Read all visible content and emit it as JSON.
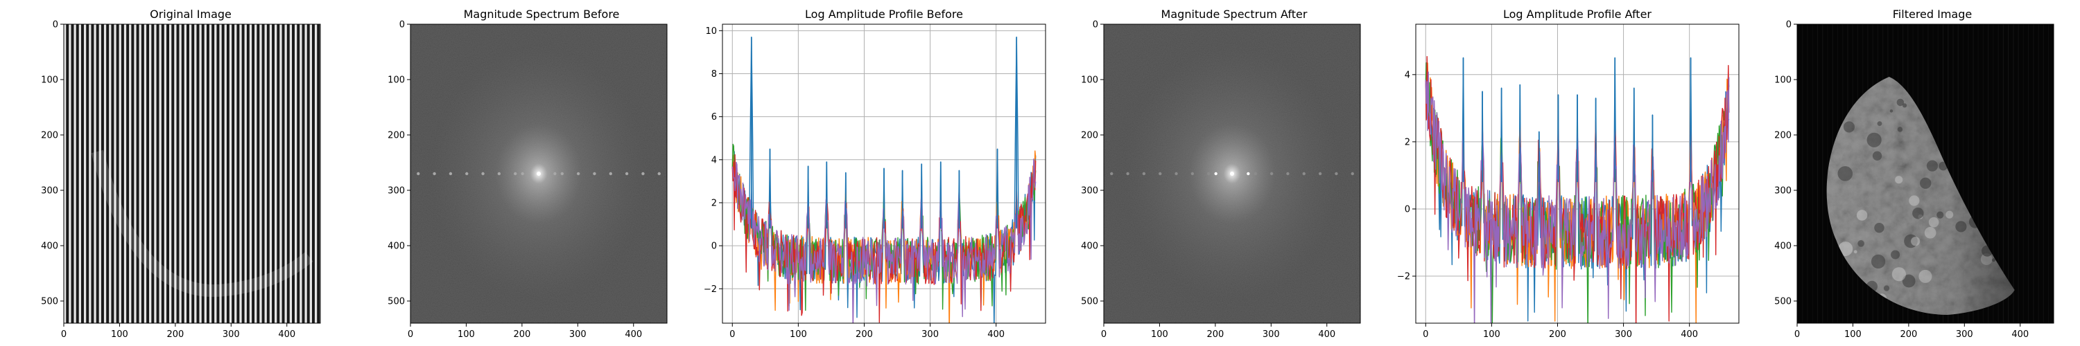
{
  "figure": {
    "panels": [
      {
        "key": "p1",
        "title": "Original Image",
        "kind": "image",
        "variant": "stripes"
      },
      {
        "key": "p2",
        "title": "Magnitude Spectrum Before",
        "kind": "image",
        "variant": "spectrum_before"
      },
      {
        "key": "p3",
        "title": "Log Amplitude Profile Before",
        "kind": "line",
        "variant": "before"
      },
      {
        "key": "p4",
        "title": "Magnitude Spectrum After",
        "kind": "image",
        "variant": "spectrum_after"
      },
      {
        "key": "p5",
        "title": "Log Amplitude Profile After",
        "kind": "line",
        "variant": "after"
      },
      {
        "key": "p6",
        "title": "Filtered Image",
        "kind": "image",
        "variant": "moon"
      }
    ]
  },
  "chart_data": [
    {
      "type": "heatmap",
      "title": "Original Image",
      "cmap": "gray",
      "xlim": [
        0,
        460
      ],
      "ylim": [
        540,
        0
      ],
      "xticks": [
        0,
        100,
        200,
        300,
        400
      ],
      "yticks": [
        0,
        100,
        200,
        300,
        400,
        500
      ]
    },
    {
      "type": "heatmap",
      "title": "Magnitude Spectrum Before",
      "cmap": "gray",
      "xlim": [
        0,
        460
      ],
      "ylim": [
        540,
        0
      ],
      "xticks": [
        0,
        100,
        200,
        300,
        400
      ],
      "yticks": [
        0,
        100,
        200,
        300,
        400,
        500
      ]
    },
    {
      "type": "line",
      "title": "Log Amplitude Profile Before",
      "xlim": [
        -15,
        475
      ],
      "ylim": [
        -3.6,
        10.3
      ],
      "xticks": [
        0,
        100,
        200,
        300,
        400
      ],
      "yticks": [
        -2,
        0,
        2,
        4,
        6,
        8,
        10
      ],
      "grid": true,
      "n_points": 461,
      "colors": [
        "#1f77b4",
        "#ff7f0e",
        "#2ca02c",
        "#d62728",
        "#9467bd"
      ],
      "peaks": {
        "x": [
          29,
          57,
          115,
          143,
          172,
          230,
          258,
          287,
          316,
          344,
          402,
          431
        ],
        "y": [
          9.7,
          4.5,
          3.7,
          3.9,
          3.4,
          3.6,
          3.5,
          3.8,
          3.9,
          3.5,
          4.5,
          9.7
        ]
      }
    },
    {
      "type": "heatmap",
      "title": "Magnitude Spectrum After",
      "cmap": "gray",
      "xlim": [
        0,
        460
      ],
      "ylim": [
        540,
        0
      ],
      "xticks": [
        0,
        100,
        200,
        300,
        400
      ],
      "yticks": [
        0,
        100,
        200,
        300,
        400,
        500
      ]
    },
    {
      "type": "line",
      "title": "Log Amplitude Profile After",
      "xlim": [
        -15,
        475
      ],
      "ylim": [
        -3.4,
        5.5
      ],
      "xticks": [
        0,
        100,
        200,
        300,
        400
      ],
      "yticks": [
        -2,
        0,
        2,
        4
      ],
      "grid": true,
      "n_points": 461,
      "colors": [
        "#1f77b4",
        "#ff7f0e",
        "#2ca02c",
        "#d62728",
        "#9467bd"
      ],
      "peaks": {
        "x": [
          57,
          86,
          115,
          143,
          172,
          201,
          230,
          258,
          287,
          316,
          344,
          402
        ],
        "y": [
          4.5,
          3.5,
          3.6,
          3.7,
          2.3,
          3.4,
          3.4,
          3.3,
          4.5,
          3.6,
          2.8,
          4.5
        ]
      }
    },
    {
      "type": "heatmap",
      "title": "Filtered Image",
      "cmap": "gray",
      "xlim": [
        0,
        460
      ],
      "ylim": [
        540,
        0
      ],
      "xticks": [
        0,
        100,
        200,
        300,
        400
      ],
      "yticks": [
        0,
        100,
        200,
        300,
        400,
        500
      ]
    }
  ]
}
